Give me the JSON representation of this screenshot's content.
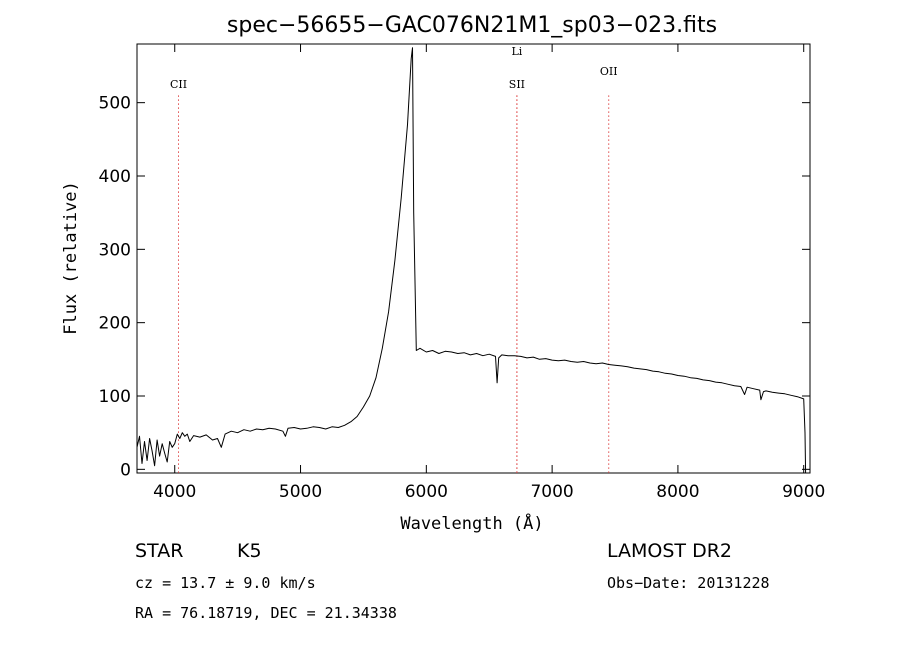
{
  "chart_data": {
    "type": "line",
    "title": "spec−56655−GAC076N21M1_sp03−023.fits",
    "xlabel": "Wavelength (Å)",
    "ylabel": "Flux (relative)",
    "xlim": [
      3700,
      9050
    ],
    "ylim": [
      -5,
      580
    ],
    "x_ticks": [
      4000,
      5000,
      6000,
      7000,
      8000,
      9000
    ],
    "y_ticks": [
      0,
      100,
      200,
      300,
      400,
      500
    ],
    "line_color": "#000000",
    "marker_color": "#e05050",
    "series": [
      {
        "points": [
          [
            3700,
            30
          ],
          [
            3720,
            45
          ],
          [
            3740,
            8
          ],
          [
            3760,
            38
          ],
          [
            3780,
            12
          ],
          [
            3800,
            42
          ],
          [
            3820,
            25
          ],
          [
            3840,
            5
          ],
          [
            3860,
            40
          ],
          [
            3880,
            18
          ],
          [
            3900,
            35
          ],
          [
            3920,
            22
          ],
          [
            3940,
            10
          ],
          [
            3960,
            38
          ],
          [
            3980,
            30
          ],
          [
            4000,
            35
          ],
          [
            4020,
            48
          ],
          [
            4040,
            42
          ],
          [
            4060,
            50
          ],
          [
            4080,
            45
          ],
          [
            4100,
            48
          ],
          [
            4120,
            38
          ],
          [
            4150,
            46
          ],
          [
            4200,
            44
          ],
          [
            4250,
            47
          ],
          [
            4300,
            40
          ],
          [
            4340,
            42
          ],
          [
            4370,
            30
          ],
          [
            4400,
            48
          ],
          [
            4450,
            52
          ],
          [
            4500,
            50
          ],
          [
            4550,
            54
          ],
          [
            4600,
            52
          ],
          [
            4650,
            55
          ],
          [
            4700,
            54
          ],
          [
            4750,
            56
          ],
          [
            4800,
            55
          ],
          [
            4860,
            52
          ],
          [
            4880,
            45
          ],
          [
            4900,
            56
          ],
          [
            4950,
            57
          ],
          [
            5000,
            55
          ],
          [
            5050,
            56
          ],
          [
            5100,
            58
          ],
          [
            5150,
            57
          ],
          [
            5200,
            55
          ],
          [
            5250,
            58
          ],
          [
            5300,
            57
          ],
          [
            5350,
            60
          ],
          [
            5400,
            65
          ],
          [
            5450,
            72
          ],
          [
            5500,
            85
          ],
          [
            5550,
            100
          ],
          [
            5600,
            125
          ],
          [
            5650,
            165
          ],
          [
            5700,
            215
          ],
          [
            5750,
            285
          ],
          [
            5800,
            370
          ],
          [
            5850,
            470
          ],
          [
            5880,
            560
          ],
          [
            5890,
            575
          ],
          [
            5900,
            350
          ],
          [
            5920,
            162
          ],
          [
            5950,
            165
          ],
          [
            6000,
            160
          ],
          [
            6050,
            162
          ],
          [
            6100,
            158
          ],
          [
            6150,
            161
          ],
          [
            6200,
            160
          ],
          [
            6250,
            158
          ],
          [
            6300,
            159
          ],
          [
            6350,
            156
          ],
          [
            6400,
            158
          ],
          [
            6450,
            155
          ],
          [
            6500,
            157
          ],
          [
            6550,
            154
          ],
          [
            6563,
            118
          ],
          [
            6575,
            152
          ],
          [
            6600,
            156
          ],
          [
            6650,
            155
          ],
          [
            6700,
            155
          ],
          [
            6750,
            154
          ],
          [
            6800,
            152
          ],
          [
            6850,
            153
          ],
          [
            6900,
            150
          ],
          [
            6950,
            151
          ],
          [
            7000,
            149
          ],
          [
            7050,
            148
          ],
          [
            7100,
            149
          ],
          [
            7150,
            147
          ],
          [
            7200,
            146
          ],
          [
            7250,
            147
          ],
          [
            7300,
            145
          ],
          [
            7350,
            144
          ],
          [
            7400,
            145
          ],
          [
            7450,
            143
          ],
          [
            7500,
            142
          ],
          [
            7550,
            141
          ],
          [
            7600,
            140
          ],
          [
            7650,
            138
          ],
          [
            7700,
            137
          ],
          [
            7750,
            136
          ],
          [
            7800,
            134
          ],
          [
            7850,
            133
          ],
          [
            7900,
            131
          ],
          [
            7950,
            130
          ],
          [
            8000,
            128
          ],
          [
            8050,
            127
          ],
          [
            8100,
            125
          ],
          [
            8150,
            124
          ],
          [
            8200,
            122
          ],
          [
            8250,
            121
          ],
          [
            8300,
            119
          ],
          [
            8350,
            118
          ],
          [
            8400,
            116
          ],
          [
            8450,
            114
          ],
          [
            8500,
            113
          ],
          [
            8530,
            102
          ],
          [
            8550,
            112
          ],
          [
            8600,
            110
          ],
          [
            8650,
            108
          ],
          [
            8660,
            95
          ],
          [
            8680,
            106
          ],
          [
            8700,
            107
          ],
          [
            8750,
            105
          ],
          [
            8800,
            104
          ],
          [
            8850,
            103
          ],
          [
            8900,
            101
          ],
          [
            8950,
            99
          ],
          [
            9000,
            96
          ],
          [
            9010,
            50
          ],
          [
            9015,
            -5
          ]
        ]
      }
    ],
    "annotations": [
      {
        "label": "CII",
        "x": 4030,
        "label_y": 520
      },
      {
        "label": "SII",
        "x": 6720,
        "label_y": 520
      },
      {
        "label": "Li",
        "x": 6720,
        "label_y": 565
      },
      {
        "label": "OII",
        "x": 7450,
        "label_y": 538
      }
    ]
  },
  "info": {
    "class": "STAR",
    "subclass": "K5",
    "survey": "LAMOST DR2",
    "cz": "cz = 13.7 ± 9.0 km/s",
    "obs_date": "Obs−Date: 20131228",
    "coords": "RA =  76.18719, DEC =  21.34338"
  }
}
